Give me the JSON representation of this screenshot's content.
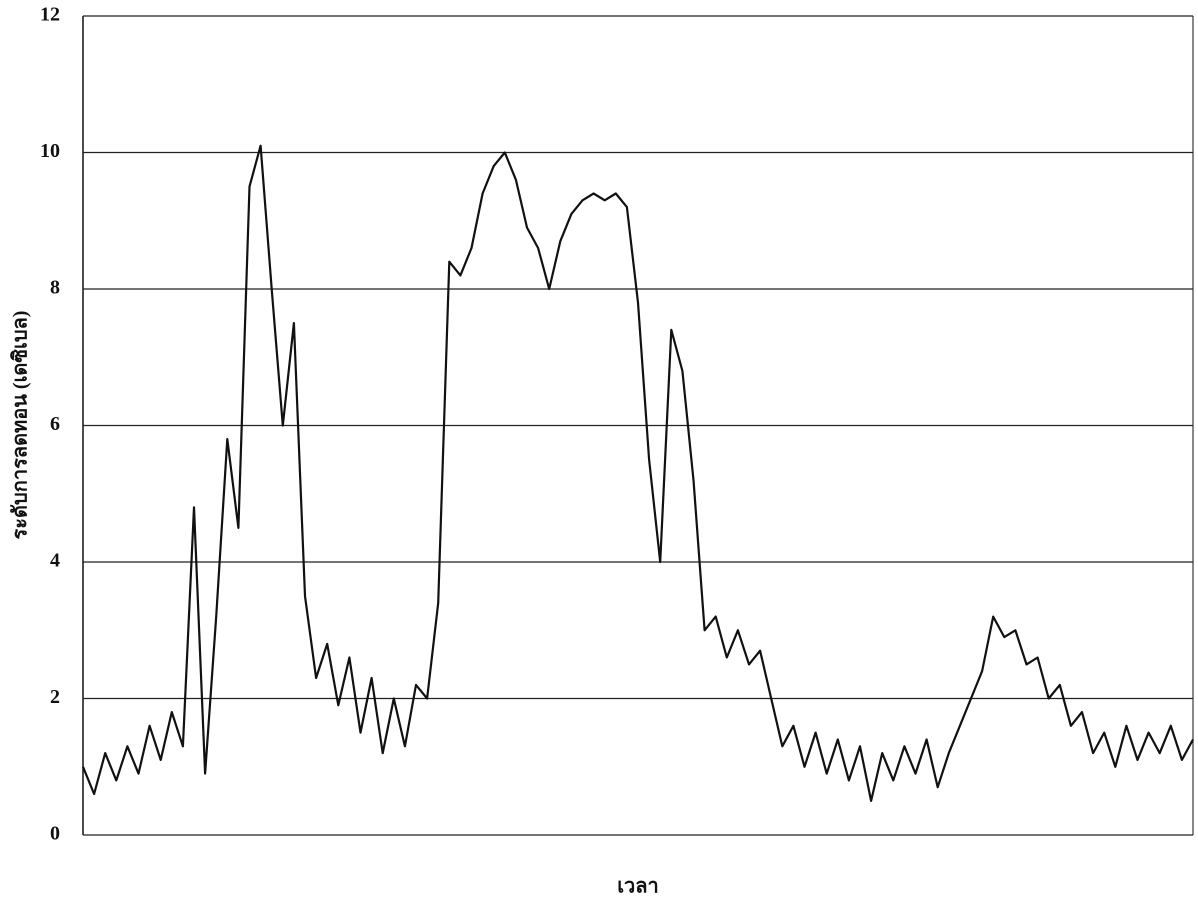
{
  "chart_data": {
    "type": "line",
    "y_label": "ระดับการลดทอน (เดซิเบล)",
    "x_label": "เวลา",
    "color": "#111111",
    "ylim": [
      0,
      12
    ],
    "yticks": [
      0,
      2,
      4,
      6,
      8,
      10,
      12
    ],
    "grid": true,
    "values": [
      1.0,
      0.6,
      1.2,
      0.8,
      1.3,
      0.9,
      1.6,
      1.1,
      1.8,
      1.3,
      4.8,
      0.9,
      3.2,
      5.8,
      4.5,
      9.5,
      10.1,
      8.0,
      6.0,
      7.5,
      3.5,
      2.3,
      2.8,
      1.9,
      2.6,
      1.5,
      2.3,
      1.2,
      2.0,
      1.3,
      2.2,
      2.0,
      3.4,
      8.4,
      8.2,
      8.6,
      9.4,
      9.8,
      10.0,
      9.6,
      8.9,
      8.6,
      8.0,
      8.7,
      9.1,
      9.3,
      9.4,
      9.3,
      9.4,
      9.2,
      7.8,
      5.5,
      4.0,
      7.4,
      6.8,
      5.2,
      3.0,
      3.2,
      2.6,
      3.0,
      2.5,
      2.7,
      2.0,
      1.3,
      1.6,
      1.0,
      1.5,
      0.9,
      1.4,
      0.8,
      1.3,
      0.5,
      1.2,
      0.8,
      1.3,
      0.9,
      1.4,
      0.7,
      1.2,
      1.6,
      2.0,
      2.4,
      3.2,
      2.9,
      3.0,
      2.5,
      2.6,
      2.0,
      2.2,
      1.6,
      1.8,
      1.2,
      1.5,
      1.0,
      1.6,
      1.1,
      1.5,
      1.2,
      1.6,
      1.1,
      1.4
    ]
  }
}
